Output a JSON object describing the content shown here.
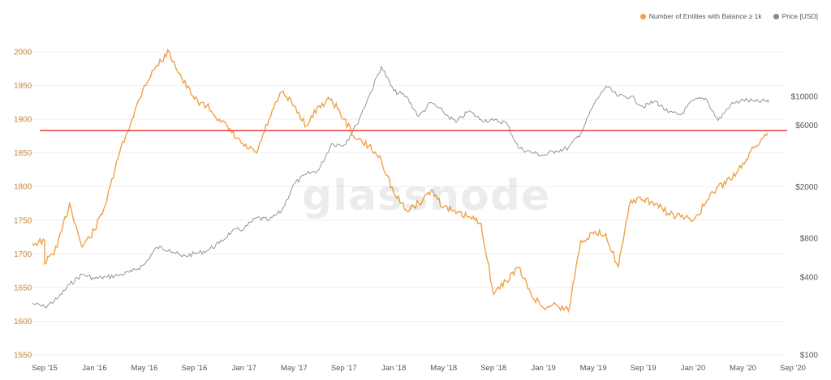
{
  "legend": {
    "entities_label": "Number of Entities with Balance ≥ 1k",
    "price_label": "Price [USD]"
  },
  "watermark": "glassnode",
  "colors": {
    "entities": "#f0a14b",
    "price": "#8a8a8a",
    "reference_line": "#e8413c",
    "left_axis_text": "#c98a3e",
    "right_axis_text": "#555555",
    "grid": "#f0f0f0"
  },
  "chart_data": {
    "type": "line",
    "title": "",
    "x_ticks": [
      "Sep '15",
      "Jan '16",
      "May '16",
      "Sep '16",
      "Jan '17",
      "May '17",
      "Sep '17",
      "Jan '18",
      "May '18",
      "Sep '18",
      "Jan '19",
      "May '19",
      "Sep '19",
      "Jan '20",
      "May '20",
      "Sep '20"
    ],
    "y_left": {
      "scale": "linear",
      "range": [
        1540,
        2010
      ],
      "ticks": [
        1550,
        1600,
        1650,
        1700,
        1750,
        1800,
        1850,
        1900,
        1950,
        2000
      ]
    },
    "y_right": {
      "scale": "log",
      "range": [
        100,
        25000
      ],
      "ticks": [
        100,
        400,
        800,
        2000,
        6000,
        10000
      ],
      "tick_labels": [
        "$100",
        "$400",
        "$800",
        "$2000",
        "$6000",
        "$10000"
      ]
    },
    "reference_line": {
      "axis": "left",
      "value": 1883
    },
    "series": [
      {
        "name": "Number of Entities with Balance ≥ 1k",
        "axis": "left",
        "points": [
          [
            "Aug '15",
            1715
          ],
          [
            "Sep '15",
            1720
          ],
          [
            "Sep '15",
            1685
          ],
          [
            "Oct '15",
            1710
          ],
          [
            "Nov '15",
            1775
          ],
          [
            "Dec '15",
            1710
          ],
          [
            "Jan '16",
            1735
          ],
          [
            "Feb '16",
            1780
          ],
          [
            "Mar '16",
            1850
          ],
          [
            "Apr '16",
            1900
          ],
          [
            "May '16",
            1950
          ],
          [
            "Jun '16",
            1980
          ],
          [
            "Jul '16",
            2000
          ],
          [
            "Aug '16",
            1960
          ],
          [
            "Sep '16",
            1930
          ],
          [
            "Oct '16",
            1920
          ],
          [
            "Nov '16",
            1900
          ],
          [
            "Dec '16",
            1880
          ],
          [
            "Jan '17",
            1860
          ],
          [
            "Feb '17",
            1850
          ],
          [
            "Mar '17",
            1900
          ],
          [
            "Apr '17",
            1940
          ],
          [
            "May '17",
            1920
          ],
          [
            "Jun '17",
            1890
          ],
          [
            "Jul '17",
            1920
          ],
          [
            "Aug '17",
            1930
          ],
          [
            "Sep '17",
            1900
          ],
          [
            "Oct '17",
            1870
          ],
          [
            "Nov '17",
            1860
          ],
          [
            "Dec '17",
            1840
          ],
          [
            "Jan '18",
            1790
          ],
          [
            "Feb '18",
            1765
          ],
          [
            "Mar '18",
            1775
          ],
          [
            "Apr '18",
            1795
          ],
          [
            "May '18",
            1770
          ],
          [
            "Jun '18",
            1760
          ],
          [
            "Jul '18",
            1755
          ],
          [
            "Aug '18",
            1745
          ],
          [
            "Sep '18",
            1640
          ],
          [
            "Oct '18",
            1660
          ],
          [
            "Nov '18",
            1680
          ],
          [
            "Dec '18",
            1640
          ],
          [
            "Jan '19",
            1620
          ],
          [
            "Feb '19",
            1625
          ],
          [
            "Mar '19",
            1615
          ],
          [
            "Apr '19",
            1720
          ],
          [
            "May '19",
            1730
          ],
          [
            "Jun '19",
            1730
          ],
          [
            "Jul '19",
            1680
          ],
          [
            "Aug '19",
            1780
          ],
          [
            "Sep '19",
            1780
          ],
          [
            "Oct '19",
            1775
          ],
          [
            "Nov '19",
            1760
          ],
          [
            "Dec '19",
            1755
          ],
          [
            "Jan '20",
            1750
          ],
          [
            "Feb '20",
            1775
          ],
          [
            "Mar '20",
            1800
          ],
          [
            "Apr '20",
            1810
          ],
          [
            "May '20",
            1835
          ],
          [
            "Jun '20",
            1860
          ],
          [
            "Jul '20",
            1880
          ]
        ]
      },
      {
        "name": "Price [USD]",
        "axis": "right",
        "points": [
          [
            "Aug '15",
            250
          ],
          [
            "Sep '15",
            235
          ],
          [
            "Oct '15",
            270
          ],
          [
            "Nov '15",
            350
          ],
          [
            "Dec '15",
            420
          ],
          [
            "Jan '16",
            390
          ],
          [
            "Feb '16",
            400
          ],
          [
            "Mar '16",
            415
          ],
          [
            "Apr '16",
            440
          ],
          [
            "May '16",
            500
          ],
          [
            "Jun '16",
            680
          ],
          [
            "Jul '16",
            655
          ],
          [
            "Aug '16",
            575
          ],
          [
            "Sep '16",
            605
          ],
          [
            "Oct '16",
            640
          ],
          [
            "Nov '16",
            730
          ],
          [
            "Dec '16",
            900
          ],
          [
            "Jan '17",
            950
          ],
          [
            "Feb '17",
            1150
          ],
          [
            "Mar '17",
            1100
          ],
          [
            "Apr '17",
            1300
          ],
          [
            "May '17",
            2100
          ],
          [
            "Jun '17",
            2500
          ],
          [
            "Jul '17",
            2700
          ],
          [
            "Aug '17",
            4300
          ],
          [
            "Sep '17",
            4200
          ],
          [
            "Oct '17",
            6000
          ],
          [
            "Nov '17",
            10000
          ],
          [
            "Dec '17",
            17000
          ],
          [
            "Jan '18",
            11000
          ],
          [
            "Feb '18",
            10000
          ],
          [
            "Mar '18",
            7000
          ],
          [
            "Apr '18",
            9000
          ],
          [
            "May '18",
            7500
          ],
          [
            "Jun '18",
            6300
          ],
          [
            "Jul '18",
            7700
          ],
          [
            "Aug '18",
            6600
          ],
          [
            "Sep '18",
            6500
          ],
          [
            "Oct '18",
            6300
          ],
          [
            "Nov '18",
            4000
          ],
          [
            "Dec '18",
            3700
          ],
          [
            "Jan '19",
            3500
          ],
          [
            "Feb '19",
            3800
          ],
          [
            "Mar '19",
            4000
          ],
          [
            "Apr '19",
            5200
          ],
          [
            "May '19",
            8500
          ],
          [
            "Jun '19",
            12000
          ],
          [
            "Jul '19",
            10000
          ],
          [
            "Aug '19",
            10000
          ],
          [
            "Sep '19",
            8300
          ],
          [
            "Oct '19",
            9200
          ],
          [
            "Nov '19",
            7500
          ],
          [
            "Dec '19",
            7200
          ],
          [
            "Jan '20",
            9300
          ],
          [
            "Feb '20",
            9700
          ],
          [
            "Mar '20",
            6500
          ],
          [
            "Apr '20",
            8600
          ],
          [
            "May '20",
            9400
          ],
          [
            "Jun '20",
            9100
          ],
          [
            "Jul '20",
            9200
          ],
          [
            "Jul '20",
            9100
          ]
        ]
      }
    ]
  }
}
